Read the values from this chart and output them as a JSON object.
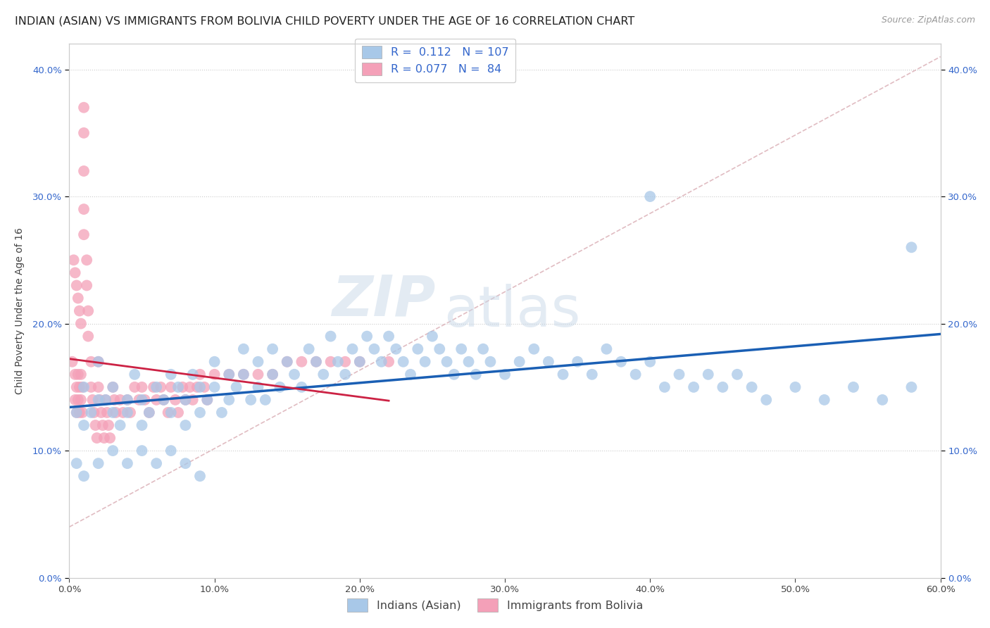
{
  "title": "INDIAN (ASIAN) VS IMMIGRANTS FROM BOLIVIA CHILD POVERTY UNDER THE AGE OF 16 CORRELATION CHART",
  "source": "Source: ZipAtlas.com",
  "ylabel": "Child Poverty Under the Age of 16",
  "xlim": [
    0.0,
    0.6
  ],
  "ylim": [
    0.0,
    0.42
  ],
  "legend_labels": [
    "Indians (Asian)",
    "Immigrants from Bolivia"
  ],
  "legend_R": [
    "0.112",
    "0.077"
  ],
  "legend_N": [
    "107",
    "84"
  ],
  "color_indian": "#a8c8e8",
  "color_bolivia": "#f4a0b8",
  "line_color_indian": "#1a5fb4",
  "line_color_bolivia": "#cc2244",
  "dash_color": "#cc8899",
  "watermark_zip": "ZIP",
  "watermark_atlas": "atlas",
  "title_fontsize": 11.5,
  "axis_label_fontsize": 10,
  "tick_fontsize": 9.5,
  "indian_x": [
    0.005,
    0.01,
    0.01,
    0.015,
    0.02,
    0.02,
    0.025,
    0.03,
    0.03,
    0.035,
    0.04,
    0.04,
    0.045,
    0.05,
    0.05,
    0.055,
    0.06,
    0.065,
    0.07,
    0.07,
    0.075,
    0.08,
    0.08,
    0.085,
    0.09,
    0.09,
    0.095,
    0.1,
    0.1,
    0.105,
    0.11,
    0.11,
    0.115,
    0.12,
    0.12,
    0.125,
    0.13,
    0.13,
    0.135,
    0.14,
    0.14,
    0.145,
    0.15,
    0.155,
    0.16,
    0.165,
    0.17,
    0.175,
    0.18,
    0.185,
    0.19,
    0.195,
    0.2,
    0.205,
    0.21,
    0.215,
    0.22,
    0.225,
    0.23,
    0.235,
    0.24,
    0.245,
    0.25,
    0.255,
    0.26,
    0.265,
    0.27,
    0.275,
    0.28,
    0.285,
    0.29,
    0.3,
    0.31,
    0.32,
    0.33,
    0.34,
    0.35,
    0.36,
    0.37,
    0.38,
    0.39,
    0.4,
    0.41,
    0.42,
    0.43,
    0.44,
    0.45,
    0.46,
    0.47,
    0.48,
    0.5,
    0.52,
    0.54,
    0.56,
    0.58,
    0.005,
    0.01,
    0.02,
    0.03,
    0.04,
    0.05,
    0.06,
    0.07,
    0.08,
    0.09,
    0.4,
    0.58
  ],
  "indian_y": [
    0.13,
    0.12,
    0.15,
    0.13,
    0.17,
    0.14,
    0.14,
    0.15,
    0.13,
    0.12,
    0.14,
    0.13,
    0.16,
    0.14,
    0.12,
    0.13,
    0.15,
    0.14,
    0.16,
    0.13,
    0.15,
    0.14,
    0.12,
    0.16,
    0.15,
    0.13,
    0.14,
    0.17,
    0.15,
    0.13,
    0.16,
    0.14,
    0.15,
    0.18,
    0.16,
    0.14,
    0.17,
    0.15,
    0.14,
    0.16,
    0.18,
    0.15,
    0.17,
    0.16,
    0.15,
    0.18,
    0.17,
    0.16,
    0.19,
    0.17,
    0.16,
    0.18,
    0.17,
    0.19,
    0.18,
    0.17,
    0.19,
    0.18,
    0.17,
    0.16,
    0.18,
    0.17,
    0.19,
    0.18,
    0.17,
    0.16,
    0.18,
    0.17,
    0.16,
    0.18,
    0.17,
    0.16,
    0.17,
    0.18,
    0.17,
    0.16,
    0.17,
    0.16,
    0.18,
    0.17,
    0.16,
    0.17,
    0.15,
    0.16,
    0.15,
    0.16,
    0.15,
    0.16,
    0.15,
    0.14,
    0.15,
    0.14,
    0.15,
    0.14,
    0.15,
    0.09,
    0.08,
    0.09,
    0.1,
    0.09,
    0.1,
    0.09,
    0.1,
    0.09,
    0.08,
    0.3,
    0.26
  ],
  "bolivia_x": [
    0.002,
    0.004,
    0.004,
    0.005,
    0.005,
    0.006,
    0.006,
    0.007,
    0.007,
    0.008,
    0.008,
    0.009,
    0.009,
    0.01,
    0.01,
    0.01,
    0.01,
    0.01,
    0.012,
    0.012,
    0.013,
    0.013,
    0.015,
    0.015,
    0.016,
    0.017,
    0.018,
    0.019,
    0.02,
    0.02,
    0.021,
    0.022,
    0.023,
    0.024,
    0.025,
    0.026,
    0.027,
    0.028,
    0.03,
    0.031,
    0.032,
    0.035,
    0.037,
    0.04,
    0.042,
    0.045,
    0.048,
    0.05,
    0.052,
    0.055,
    0.058,
    0.06,
    0.063,
    0.065,
    0.068,
    0.07,
    0.073,
    0.075,
    0.078,
    0.08,
    0.083,
    0.085,
    0.088,
    0.09,
    0.093,
    0.095,
    0.1,
    0.11,
    0.12,
    0.13,
    0.14,
    0.15,
    0.16,
    0.17,
    0.18,
    0.19,
    0.2,
    0.22,
    0.003,
    0.004,
    0.005,
    0.006,
    0.007,
    0.008
  ],
  "bolivia_y": [
    0.17,
    0.16,
    0.14,
    0.15,
    0.13,
    0.16,
    0.14,
    0.15,
    0.13,
    0.16,
    0.14,
    0.15,
    0.13,
    0.37,
    0.35,
    0.32,
    0.29,
    0.27,
    0.25,
    0.23,
    0.21,
    0.19,
    0.17,
    0.15,
    0.14,
    0.13,
    0.12,
    0.11,
    0.17,
    0.15,
    0.14,
    0.13,
    0.12,
    0.11,
    0.14,
    0.13,
    0.12,
    0.11,
    0.15,
    0.14,
    0.13,
    0.14,
    0.13,
    0.14,
    0.13,
    0.15,
    0.14,
    0.15,
    0.14,
    0.13,
    0.15,
    0.14,
    0.15,
    0.14,
    0.13,
    0.15,
    0.14,
    0.13,
    0.15,
    0.14,
    0.15,
    0.14,
    0.15,
    0.16,
    0.15,
    0.14,
    0.16,
    0.16,
    0.16,
    0.16,
    0.16,
    0.17,
    0.17,
    0.17,
    0.17,
    0.17,
    0.17,
    0.17,
    0.25,
    0.24,
    0.23,
    0.22,
    0.21,
    0.2
  ]
}
